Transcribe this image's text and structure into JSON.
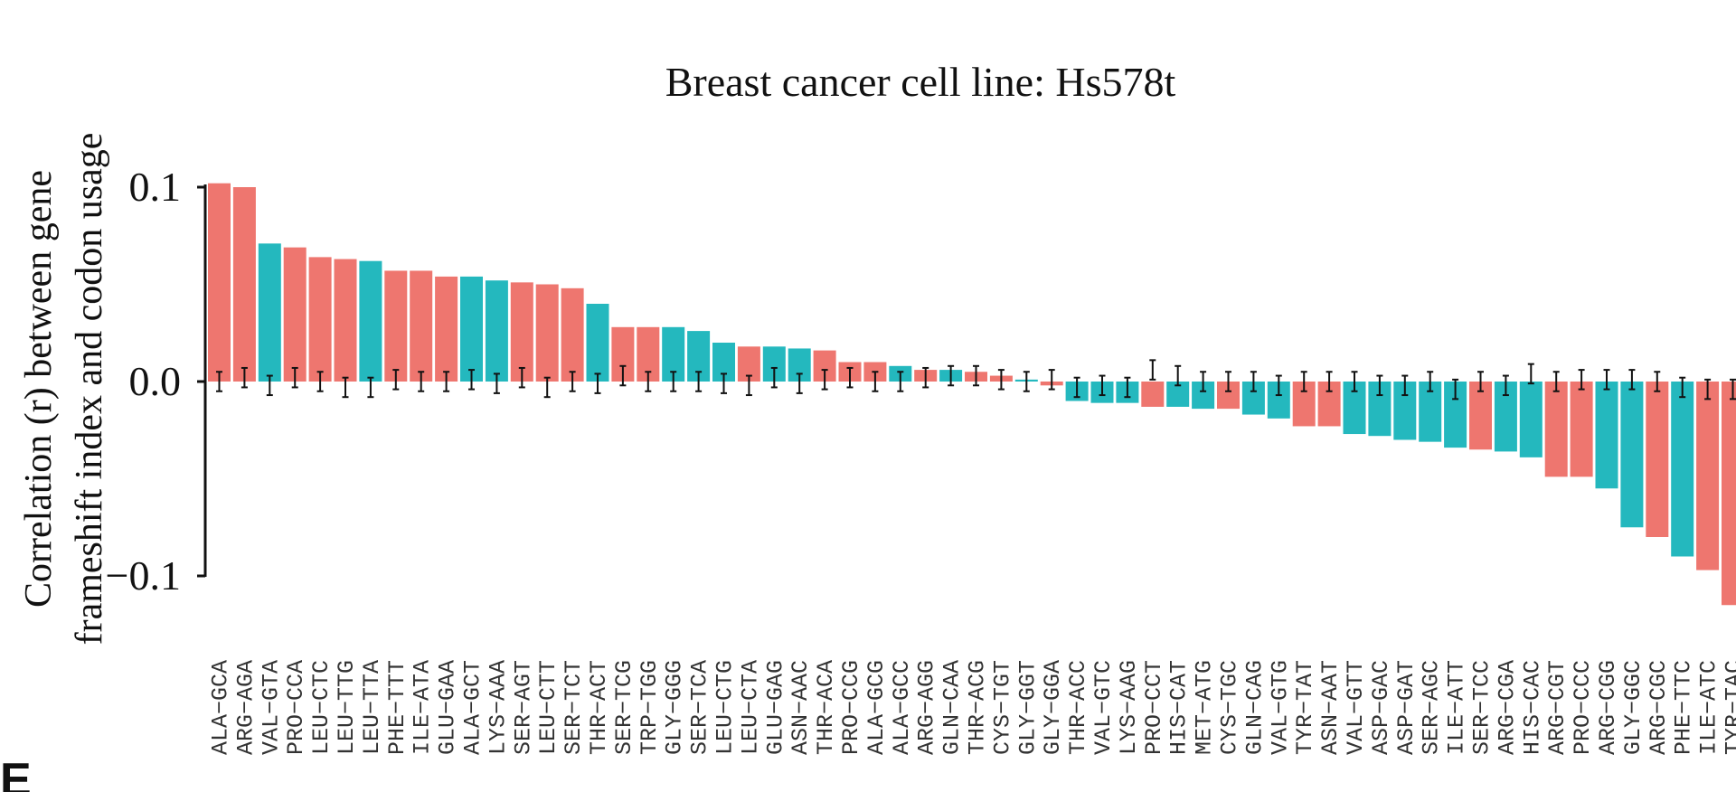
{
  "panel_letter": "E",
  "chart_data": {
    "type": "bar",
    "title": "Breast cancer cell line: Hs578t",
    "ylabel_line1": "Correlation (r) between gene",
    "ylabel_line2": "frameshift index and codon usage",
    "xlabel": "",
    "ylim": [
      -0.11,
      0.1
    ],
    "yticks": [
      0.1,
      0.0,
      -0.1
    ],
    "ytick_labels": [
      "0.1",
      "0.0",
      "−0.1"
    ],
    "grid": false,
    "colors": {
      "salmon": "#EE766F",
      "teal": "#24B8BE",
      "errorbar": "#111111",
      "axis": "#111111"
    },
    "categories": [
      "ALA−GCA",
      "ARG−AGA",
      "VAL−GTA",
      "PRO−CCA",
      "LEU−CTC",
      "LEU−TTG",
      "LEU−TTA",
      "PHE−TTT",
      "ILE−ATA",
      "GLU−GAA",
      "ALA−GCT",
      "LYS−AAA",
      "SER−AGT",
      "LEU−CTT",
      "SER−TCT",
      "THR−ACT",
      "SER−TCG",
      "TRP−TGG",
      "GLY−GGG",
      "SER−TCA",
      "LEU−CTG",
      "LEU−CTA",
      "GLU−GAG",
      "ASN−AAC",
      "THR−ACA",
      "PRO−CCG",
      "ALA−GCG",
      "ALA−GCC",
      "ARG−AGG",
      "GLN−CAA",
      "THR−ACG",
      "CYS−TGT",
      "GLY−GGT",
      "GLY−GGA",
      "THR−ACC",
      "VAL−GTC",
      "LYS−AAG",
      "PRO−CCT",
      "HIS−CAT",
      "MET−ATG",
      "CYS−TGC",
      "GLN−CAG",
      "VAL−GTG",
      "TYR−TAT",
      "ASN−AAT",
      "VAL−GTT",
      "ASP−GAC",
      "ASP−GAT",
      "SER−AGC",
      "ILE−ATT",
      "SER−TCC",
      "ARG−CGA",
      "HIS−CAC",
      "ARG−CGT",
      "PRO−CCC",
      "ARG−CGG",
      "GLY−GGC",
      "ARG−CGC",
      "PHE−TTC",
      "ILE−ATC",
      "TYR−TAC"
    ],
    "values": [
      0.102,
      0.1,
      0.071,
      0.069,
      0.064,
      0.063,
      0.062,
      0.057,
      0.057,
      0.054,
      0.054,
      0.052,
      0.051,
      0.05,
      0.048,
      0.04,
      0.028,
      0.028,
      0.028,
      0.026,
      0.02,
      0.018,
      0.018,
      0.017,
      0.016,
      0.01,
      0.01,
      0.008,
      0.006,
      0.006,
      0.005,
      0.003,
      0.001,
      -0.002,
      -0.01,
      -0.011,
      -0.011,
      -0.013,
      -0.013,
      -0.014,
      -0.014,
      -0.017,
      -0.019,
      -0.023,
      -0.023,
      -0.027,
      -0.028,
      -0.03,
      -0.031,
      -0.034,
      -0.035,
      -0.036,
      -0.039,
      -0.049,
      -0.049,
      -0.055,
      -0.075,
      -0.08,
      -0.09,
      -0.097,
      -0.115
    ],
    "bar_colors": [
      "salmon",
      "salmon",
      "teal",
      "salmon",
      "salmon",
      "salmon",
      "teal",
      "salmon",
      "salmon",
      "salmon",
      "teal",
      "teal",
      "salmon",
      "salmon",
      "salmon",
      "teal",
      "salmon",
      "salmon",
      "teal",
      "teal",
      "teal",
      "salmon",
      "teal",
      "teal",
      "salmon",
      "salmon",
      "salmon",
      "teal",
      "salmon",
      "teal",
      "salmon",
      "salmon",
      "teal",
      "salmon",
      "teal",
      "teal",
      "teal",
      "salmon",
      "teal",
      "teal",
      "salmon",
      "teal",
      "teal",
      "salmon",
      "salmon",
      "teal",
      "teal",
      "teal",
      "teal",
      "teal",
      "salmon",
      "teal",
      "teal",
      "salmon",
      "salmon",
      "teal",
      "teal",
      "salmon",
      "teal",
      "salmon",
      "salmon"
    ],
    "error_center": [
      0.0,
      0.002,
      -0.002,
      0.002,
      0.0,
      -0.003,
      -0.003,
      0.001,
      0.0,
      0.0,
      0.001,
      -0.001,
      0.002,
      -0.003,
      0.0,
      -0.001,
      0.003,
      0.0,
      0.0,
      0.0,
      -0.001,
      -0.002,
      0.002,
      -0.001,
      0.001,
      0.002,
      0.0,
      0.0,
      0.002,
      0.003,
      0.003,
      0.001,
      0.0,
      0.001,
      -0.003,
      -0.002,
      -0.003,
      0.006,
      0.003,
      0.0,
      0.0,
      0.0,
      -0.002,
      0.0,
      0.0,
      0.0,
      -0.002,
      -0.002,
      0.0,
      -0.004,
      0.0,
      -0.002,
      0.004,
      0.0,
      0.001,
      0.001,
      0.001,
      0.0,
      -0.003,
      -0.004,
      -0.004
    ],
    "error_half": 0.005
  }
}
